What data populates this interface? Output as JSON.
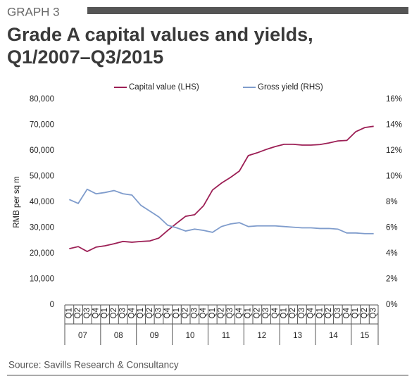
{
  "chart_data": {
    "type": "line",
    "label": "GRAPH 3",
    "title": [
      "Grade A capital values and yields,",
      "Q1/2007–Q3/2015"
    ],
    "y_label": "RMB per sq m",
    "source": "Source: Savills Research & Consultancy",
    "categories": [
      "Q1",
      "Q2",
      "Q3",
      "Q4",
      "Q1",
      "Q2",
      "Q3",
      "Q4",
      "Q1",
      "Q2",
      "Q3",
      "Q4",
      "Q1",
      "Q2",
      "Q3",
      "Q4",
      "Q1",
      "Q2",
      "Q3",
      "Q4",
      "Q1",
      "Q2",
      "Q3",
      "Q4",
      "Q1",
      "Q2",
      "Q3",
      "Q4",
      "Q1",
      "Q2",
      "Q3",
      "Q4",
      "Q1",
      "Q2",
      "Q3"
    ],
    "x_groups": [
      "07",
      "08",
      "09",
      "10",
      "11",
      "12",
      "13",
      "14",
      "15"
    ],
    "series": [
      {
        "name": "Capital value (LHS)",
        "color": "#9c1f55",
        "values": [
          21900,
          22700,
          20800,
          22500,
          23000,
          23800,
          24700,
          24400,
          24700,
          24900,
          26000,
          29000,
          31800,
          34500,
          35100,
          38600,
          44700,
          47400,
          49600,
          52100,
          58100,
          59200,
          60500,
          61600,
          62500,
          62500,
          62200,
          62200,
          62400,
          63000,
          63800,
          64000,
          67400,
          69000,
          69500
        ]
      },
      {
        "name": "Gross yield (RHS)",
        "color": "#7f9ccc",
        "axis": "y2",
        "values": [
          8.2,
          7.9,
          9.0,
          8.65,
          8.75,
          8.9,
          8.65,
          8.55,
          7.75,
          7.3,
          6.85,
          6.2,
          6.0,
          5.75,
          5.9,
          5.8,
          5.65,
          6.1,
          6.3,
          6.4,
          6.1,
          6.15,
          6.15,
          6.15,
          6.1,
          6.05,
          6.0,
          6.0,
          5.95,
          5.95,
          5.9,
          5.6,
          5.6,
          5.55,
          5.55
        ]
      }
    ],
    "ylim": [
      0,
      80000
    ],
    "yticks": [
      0,
      {
        "value": 10000,
        "label": "10,000"
      },
      {
        "value": 20000,
        "label": "20,000"
      },
      {
        "value": 30000,
        "label": "30,000"
      },
      {
        "value": 40000,
        "label": "40,000"
      },
      {
        "value": 50000,
        "label": "50,000"
      },
      {
        "value": 60000,
        "label": "60,000"
      },
      {
        "value": 70000,
        "label": "70,000"
      },
      {
        "value": 80000,
        "label": "80,000"
      }
    ],
    "y2lim": [
      0,
      16
    ],
    "y2ticks": [
      {
        "value": 0,
        "label": "0%"
      },
      {
        "value": 2,
        "label": "2%"
      },
      {
        "value": 4,
        "label": "4%"
      },
      {
        "value": 6,
        "label": "6%"
      },
      {
        "value": 8,
        "label": "8%"
      },
      {
        "value": 10,
        "label": "10%"
      },
      {
        "value": 12,
        "label": "12%"
      },
      {
        "value": 14,
        "label": "14%"
      },
      {
        "value": 16,
        "label": "16%"
      }
    ],
    "grid": false,
    "legend": "top"
  }
}
